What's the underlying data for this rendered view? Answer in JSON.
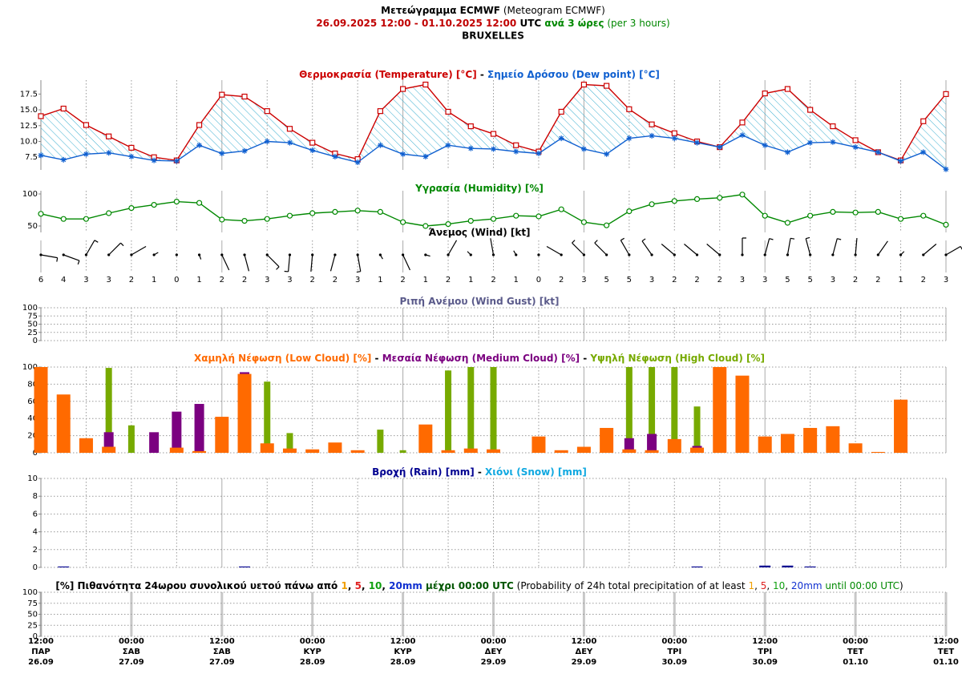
{
  "header": {
    "line1": [
      {
        "text": "Μετεώγραμμα ECMWF",
        "bold": true,
        "color": "#000000"
      },
      {
        "text": " (Meteogram ECMWF)",
        "bold": false,
        "color": "#000000"
      }
    ],
    "line2": [
      {
        "text": "26.09.2025 12:00",
        "bold": true,
        "color": "#c00000"
      },
      {
        "text": " - ",
        "bold": true,
        "color": "#c00000"
      },
      {
        "text": "01.10.2025 12:00",
        "bold": true,
        "color": "#c00000"
      },
      {
        "text": " UTC",
        "bold": true,
        "color": "#000000"
      },
      {
        "text": " ανά 3 ώρες",
        "bold": true,
        "color": "#008800"
      },
      {
        "text": " (per 3 hours)",
        "bold": false,
        "color": "#008800"
      }
    ],
    "location": "BRUXELLES"
  },
  "x_labels": [
    {
      "time": "12:00",
      "day": "ΠΑΡ",
      "date": "26.09"
    },
    null,
    null,
    null,
    {
      "time": "00:00",
      "day": "ΣΑΒ",
      "date": "27.09"
    },
    null,
    null,
    null,
    {
      "time": "12:00",
      "day": "ΣΑΒ",
      "date": "27.09"
    },
    null,
    null,
    null,
    {
      "time": "00:00",
      "day": "ΚΥΡ",
      "date": "28.09"
    },
    null,
    null,
    null,
    {
      "time": "12:00",
      "day": "ΚΥΡ",
      "date": "28.09"
    },
    null,
    null,
    null,
    {
      "time": "00:00",
      "day": "ΔΕΥ",
      "date": "29.09"
    },
    null,
    null,
    null,
    {
      "time": "12:00",
      "day": "ΔΕΥ",
      "date": "29.09"
    },
    null,
    null,
    null,
    {
      "time": "00:00",
      "day": "ΤΡΙ",
      "date": "30.09"
    },
    null,
    null,
    null,
    {
      "time": "12:00",
      "day": "ΤΡΙ",
      "date": "30.09"
    },
    null,
    null,
    null,
    {
      "time": "00:00",
      "day": "ΤΕΤ",
      "date": "01.10"
    },
    null,
    null,
    null,
    {
      "time": "12:00",
      "day": "ΤΕΤ",
      "date": "01.10"
    }
  ],
  "chart_data": [
    {
      "type": "line",
      "title_separator": " - ",
      "ylim": [
        5.5,
        19.7
      ],
      "yticks": [
        7.5,
        {
          "value": 10,
          "label": "10.0"
        },
        12.5,
        {
          "value": 15,
          "label": "15.0"
        },
        17.5
      ],
      "fill_between": true,
      "series": [
        {
          "name": "Θερμοκρασία (Temperature) [°C]",
          "color": "#cc0000",
          "marker": "square",
          "values": [
            14.0,
            15.2,
            12.6,
            10.8,
            9.0,
            7.5,
            7.0,
            12.6,
            17.4,
            17.1,
            14.8,
            12.0,
            9.8,
            8.1,
            7.2,
            14.8,
            18.3,
            19.0,
            14.7,
            12.4,
            11.2,
            9.4,
            8.4,
            14.7,
            19.0,
            18.8,
            15.1,
            12.7,
            11.3,
            10.0,
            9.1,
            13.0,
            17.6,
            18.3,
            15.0,
            12.4,
            10.2,
            8.3,
            7.0,
            13.2,
            17.5
          ]
        },
        {
          "name": "Σημείο Δρόσου (Dew point) [°C]",
          "color": "#1060d0",
          "marker": "star",
          "values": [
            7.8,
            7.1,
            8.0,
            8.2,
            7.6,
            7.0,
            6.9,
            9.4,
            8.1,
            8.5,
            10.0,
            9.8,
            8.6,
            7.6,
            6.7,
            9.4,
            8.0,
            7.6,
            9.4,
            8.9,
            8.8,
            8.4,
            8.1,
            10.5,
            8.8,
            8.0,
            10.5,
            10.9,
            10.5,
            9.8,
            9.1,
            11.0,
            9.4,
            8.3,
            9.8,
            9.9,
            9.1,
            8.3,
            6.9,
            8.3,
            5.6
          ]
        }
      ]
    },
    {
      "type": "line",
      "ylim": [
        40,
        105
      ],
      "yticks": [
        50,
        100
      ],
      "series": [
        {
          "name": "Υγρασία (Humidity) [%]",
          "color": "#008800",
          "marker": "circle",
          "values": [
            69,
            61,
            61,
            70,
            78,
            83,
            88,
            86,
            60,
            58,
            61,
            66,
            70,
            72,
            74,
            72,
            56,
            50,
            53,
            58,
            61,
            66,
            65,
            76,
            56,
            51,
            73,
            84,
            89,
            92,
            94,
            99,
            66,
            55,
            66,
            72,
            71,
            72,
            61,
            66,
            52
          ]
        }
      ]
    },
    {
      "type": "wind_barb",
      "title": "Άνεμος (Wind) [kt]",
      "title_color": "#000000",
      "color": "#000000",
      "speeds": [
        6,
        4,
        3,
        3,
        2,
        1,
        0,
        1,
        2,
        2,
        3,
        3,
        2,
        2,
        3,
        1,
        2,
        1,
        2,
        1,
        2,
        1,
        0,
        2,
        3,
        5,
        5,
        3,
        2,
        2,
        2,
        3,
        3,
        5,
        5,
        3,
        2,
        2,
        1,
        2,
        3
      ],
      "directions": [
        100,
        110,
        30,
        45,
        60,
        60,
        null,
        160,
        155,
        165,
        135,
        185,
        185,
        195,
        170,
        150,
        155,
        105,
        30,
        315,
        350,
        330,
        null,
        300,
        315,
        315,
        330,
        325,
        310,
        310,
        310,
        0,
        15,
        10,
        345,
        15,
        5,
        35,
        45,
        50,
        60
      ]
    },
    {
      "type": "bar",
      "title": "Ριπή Ανέμου (Wind Gust) [kt]",
      "title_color": "#5a5a8a",
      "ylim": [
        0,
        100
      ],
      "yticks": [
        0,
        25,
        50,
        75,
        100
      ],
      "grid": true
    },
    {
      "type": "bar",
      "title_separator": " - ",
      "ylim": [
        0,
        100
      ],
      "yticks": [
        0,
        20,
        40,
        60,
        80,
        100
      ],
      "grid": true,
      "series": [
        {
          "name": "Χαμηλή Νέφωση (Low Cloud) [%]",
          "color": "#ff6a00",
          "values": [
            100,
            68,
            17,
            7,
            0,
            0,
            6,
            2,
            42,
            92,
            11,
            5,
            4,
            12,
            3,
            0,
            0,
            33,
            3,
            5,
            4,
            0,
            19,
            3,
            7,
            29,
            4,
            3,
            16,
            6,
            100,
            90,
            19,
            22,
            29,
            31,
            11,
            1,
            62,
            0,
            0
          ]
        },
        {
          "name": "Μεσαία Νέφωση (Medium Cloud) [%]",
          "color": "#7b0080",
          "values": [
            0,
            0,
            0,
            24,
            0,
            24,
            48,
            57,
            0,
            94,
            0,
            0,
            0,
            0,
            0,
            0,
            0,
            0,
            0,
            0,
            0,
            0,
            0,
            0,
            0,
            0,
            17,
            22,
            0,
            8,
            0,
            0,
            0,
            0,
            0,
            0,
            0,
            0,
            0,
            0,
            0
          ]
        },
        {
          "name": "Υψηλή Νέφωση (High Cloud) [%]",
          "color": "#77aa00",
          "values": [
            0,
            0,
            0,
            99,
            32,
            0,
            0,
            0,
            0,
            0,
            83,
            23,
            0,
            0,
            0,
            27,
            3,
            0,
            96,
            100,
            100,
            0,
            0,
            0,
            0,
            0,
            100,
            100,
            100,
            54,
            0,
            0,
            0,
            0,
            0,
            0,
            0,
            0,
            0,
            0,
            0
          ]
        }
      ]
    },
    {
      "type": "bar",
      "title_separator": " - ",
      "ylim": [
        0,
        10
      ],
      "yticks": [
        0,
        2,
        4,
        6,
        8,
        10
      ],
      "grid": true,
      "series": [
        {
          "name": "Βροχή (Rain) [mm]",
          "color": "#000090",
          "values": [
            0,
            0.1,
            0,
            0,
            0,
            0,
            0,
            0,
            0,
            0.1,
            0,
            0,
            0,
            0,
            0,
            0,
            0,
            0,
            0,
            0,
            0,
            0,
            0,
            0,
            0,
            0,
            0,
            0,
            0,
            0.1,
            0,
            0,
            0.2,
            0.2,
            0.1,
            0,
            0,
            0,
            0,
            0,
            0
          ]
        },
        {
          "name": "Χιόνι (Snow) [mm]",
          "color": "#10a8e0",
          "values": [
            0,
            0,
            0,
            0,
            0,
            0,
            0,
            0,
            0,
            0,
            0,
            0,
            0,
            0,
            0,
            0,
            0,
            0,
            0,
            0,
            0,
            0,
            0,
            0,
            0,
            0,
            0,
            0,
            0,
            0,
            0,
            0,
            0,
            0,
            0,
            0,
            0,
            0,
            0,
            0,
            0
          ]
        }
      ]
    },
    {
      "type": "bar",
      "title_parts": [
        {
          "text": "[%] Πιθανότητα 24ωρου συνολικού υετού πάνω από ",
          "bold": true,
          "color": "#000000"
        },
        {
          "text": "1",
          "bold": true,
          "color": "#f0a000"
        },
        {
          "text": ", ",
          "bold": true,
          "color": "#000000"
        },
        {
          "text": "5",
          "bold": true,
          "color": "#e02020"
        },
        {
          "text": ", ",
          "bold": true,
          "color": "#000000"
        },
        {
          "text": "10",
          "bold": true,
          "color": "#10a010"
        },
        {
          "text": ", ",
          "bold": true,
          "color": "#000000"
        },
        {
          "text": "20mm",
          "bold": true,
          "color": "#1030d0"
        },
        {
          "text": " μέχρι 00:00 UTC",
          "bold": true,
          "color": "#005500"
        },
        {
          "text": " (Probability of 24h total precipitation of at least ",
          "bold": false,
          "color": "#000000"
        },
        {
          "text": "1",
          "bold": false,
          "color": "#f0a000"
        },
        {
          "text": ", ",
          "bold": false,
          "color": "#000000"
        },
        {
          "text": "5",
          "bold": false,
          "color": "#e02020"
        },
        {
          "text": ", ",
          "bold": false,
          "color": "#000000"
        },
        {
          "text": "10",
          "bold": false,
          "color": "#10a010"
        },
        {
          "text": ", ",
          "bold": false,
          "color": "#000000"
        },
        {
          "text": "20mm",
          "bold": false,
          "color": "#1030d0"
        },
        {
          "text": " until 00:00 UTC",
          "bold": false,
          "color": "#008800"
        },
        {
          "text": ")",
          "bold": false,
          "color": "#000000"
        }
      ],
      "ylim": [
        0,
        100
      ],
      "yticks": [
        0,
        25,
        50,
        75,
        100
      ],
      "grid": true,
      "thick_day_lines": true
    }
  ]
}
